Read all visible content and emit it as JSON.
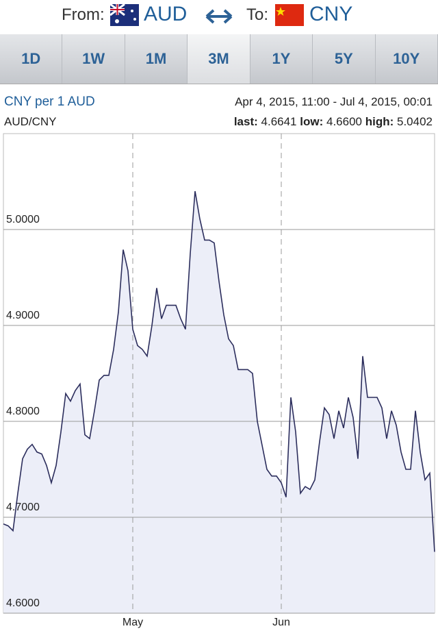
{
  "header": {
    "from_label": "From:",
    "from_currency": "AUD",
    "to_label": "To:",
    "to_currency": "CNY"
  },
  "tabs": {
    "items": [
      "1D",
      "1W",
      "1M",
      "3M",
      "1Y",
      "5Y",
      "10Y"
    ],
    "selected": 3
  },
  "info": {
    "title": "CNY per 1 AUD",
    "range": "Apr 4, 2015, 11:00 - Jul 4, 2015, 00:01",
    "pair": "AUD/CNY",
    "last_label": "last:",
    "last": "4.6641",
    "low_label": "low:",
    "low": "4.6600",
    "high_label": "high:",
    "high": "5.0402"
  },
  "chart_data": {
    "type": "line",
    "color": "#2b2d5c",
    "fill": "#eceef8",
    "grid": true,
    "categories": [
      null,
      null,
      null,
      null,
      null,
      null,
      null,
      null,
      null,
      null,
      null,
      null,
      null,
      null,
      null,
      null,
      null,
      null,
      null,
      null,
      null,
      null,
      null,
      null,
      null,
      null,
      null,
      "May",
      null,
      null,
      null,
      null,
      null,
      null,
      null,
      null,
      null,
      null,
      null,
      null,
      null,
      null,
      null,
      null,
      null,
      null,
      null,
      null,
      null,
      null,
      null,
      null,
      null,
      null,
      null,
      null,
      null,
      null,
      "Jun",
      null,
      null,
      null,
      null,
      null,
      null,
      null,
      null,
      null,
      null,
      null,
      null,
      null,
      null,
      null,
      null,
      null,
      null,
      null,
      null,
      null,
      null,
      null,
      null,
      null,
      null,
      null,
      null,
      null,
      null,
      null,
      null
    ],
    "values": [
      4.693,
      4.691,
      4.686,
      4.725,
      4.761,
      4.771,
      4.776,
      4.768,
      4.766,
      4.754,
      4.736,
      4.754,
      4.789,
      4.829,
      4.821,
      4.832,
      4.839,
      4.786,
      4.782,
      4.811,
      4.843,
      4.848,
      4.848,
      4.875,
      4.914,
      4.979,
      4.957,
      4.896,
      4.879,
      4.875,
      4.868,
      4.9,
      4.939,
      4.907,
      4.921,
      4.921,
      4.921,
      4.907,
      4.896,
      4.975,
      5.04,
      5.011,
      4.989,
      4.989,
      4.986,
      4.946,
      4.911,
      4.886,
      4.879,
      4.854,
      4.854,
      4.854,
      4.85,
      4.8,
      4.775,
      4.75,
      4.743,
      4.743,
      4.736,
      4.721,
      4.825,
      4.789,
      4.725,
      4.732,
      4.729,
      4.739,
      4.779,
      4.814,
      4.807,
      4.782,
      4.811,
      4.793,
      4.825,
      4.804,
      4.761,
      4.868,
      4.825,
      4.825,
      4.825,
      4.814,
      4.782,
      4.811,
      4.796,
      4.768,
      4.75,
      4.75,
      4.811,
      4.768,
      4.739,
      4.746,
      4.664
    ],
    "ylim": [
      4.6,
      5.1
    ],
    "yticks": [
      {
        "value": 4.6,
        "label": "4.6000"
      },
      {
        "value": 4.7,
        "label": "4.7000"
      },
      {
        "value": 4.8,
        "label": "4.8000"
      },
      {
        "value": 4.9,
        "label": "4.9000"
      },
      {
        "value": 5,
        "label": "5.0000"
      }
    ]
  }
}
